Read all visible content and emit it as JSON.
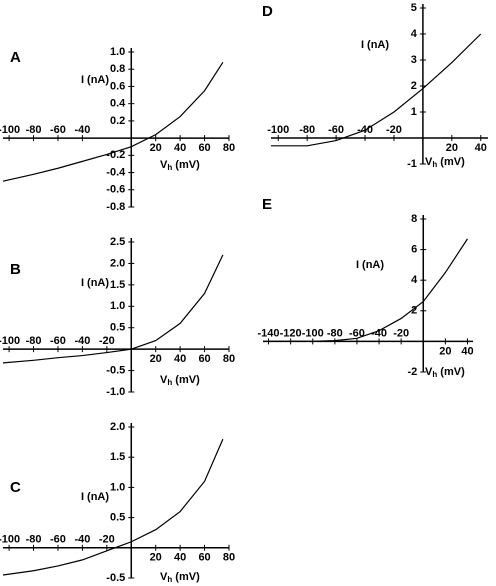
{
  "chart_data": [
    {
      "type": "line",
      "label": "A",
      "ylabel": "I (nA)",
      "xlabel": {
        "symbol": "V",
        "subscript": "h",
        "unit": " (mV)"
      },
      "x": [
        -105,
        -80,
        -60,
        -40,
        -20,
        0,
        20,
        40,
        60,
        75
      ],
      "series": [
        {
          "color": "#000000",
          "values": [
            -0.5,
            -0.42,
            -0.35,
            -0.27,
            -0.19,
            -0.1,
            0.04,
            0.25,
            0.55,
            0.88
          ]
        }
      ],
      "xlim": [
        -105,
        80
      ],
      "ylim": [
        -0.8,
        1.0
      ],
      "xticks": [
        -100,
        -80,
        -60,
        -40,
        20,
        40,
        60,
        80
      ],
      "yticks": [
        {
          "value": 1,
          "label": "1.0"
        },
        0.8,
        0.6,
        0.4,
        0.2,
        -0.2,
        -0.4,
        -0.6,
        -0.8
      ]
    },
    {
      "type": "line",
      "label": "B",
      "ylabel": "I (nA)",
      "xlabel": {
        "symbol": "V",
        "subscript": "h",
        "unit": " (mV)"
      },
      "x": [
        -105,
        -80,
        -60,
        -40,
        -20,
        0,
        20,
        40,
        60,
        75
      ],
      "series": [
        {
          "color": "#000000",
          "values": [
            -0.32,
            -0.26,
            -0.2,
            -0.15,
            -0.08,
            0.0,
            0.2,
            0.6,
            1.3,
            2.2
          ]
        }
      ],
      "xlim": [
        -105,
        80
      ],
      "ylim": [
        -1,
        2.5
      ],
      "xticks": [
        -100,
        -80,
        -60,
        -40,
        -20,
        20,
        40,
        60,
        80
      ],
      "yticks": [
        2.5,
        {
          "value": 2,
          "label": "2.0"
        },
        1.5,
        {
          "value": 1,
          "label": "1.0"
        },
        0.5,
        -0.5,
        {
          "value": -1,
          "label": "-1.0"
        }
      ]
    },
    {
      "type": "line",
      "label": "C",
      "ylabel": "I (nA)",
      "xlabel": {
        "symbol": "V",
        "subscript": "h",
        "unit": " (mV)"
      },
      "x": [
        -105,
        -80,
        -60,
        -40,
        -20,
        0,
        20,
        40,
        60,
        75
      ],
      "series": [
        {
          "color": "#000000",
          "values": [
            -0.45,
            -0.38,
            -0.3,
            -0.2,
            -0.05,
            0.1,
            0.3,
            0.6,
            1.1,
            1.8
          ]
        }
      ],
      "xlim": [
        -105,
        80
      ],
      "ylim": [
        -0.5,
        2
      ],
      "xticks": [
        -100,
        -80,
        -60,
        -40,
        -20,
        20,
        40,
        60,
        80
      ],
      "yticks": [
        {
          "value": 2,
          "label": "2.0"
        },
        1.5,
        {
          "value": 1,
          "label": "1.0"
        },
        0.5,
        -0.5
      ]
    },
    {
      "type": "line",
      "label": "D",
      "ylabel": "I (nA)",
      "xlabel": {
        "symbol": "V",
        "subscript": "h",
        "unit": " (mV)"
      },
      "x": [
        -105,
        -80,
        -60,
        -40,
        -20,
        0,
        20,
        40
      ],
      "series": [
        {
          "color": "#000000",
          "values": [
            -0.3,
            -0.3,
            -0.1,
            0.3,
            1.0,
            1.9,
            2.9,
            4.0
          ]
        }
      ],
      "xlim": [
        -105,
        45
      ],
      "ylim": [
        -1,
        5
      ],
      "xticks": [
        -100,
        -80,
        -60,
        -40,
        -20,
        20,
        40
      ],
      "yticks": [
        5,
        4,
        3,
        2,
        1,
        -1
      ]
    },
    {
      "type": "line",
      "label": "E",
      "ylabel": "I (nA)",
      "xlabel": {
        "symbol": "V",
        "subscript": "h",
        "unit": " (mV)"
      },
      "x": [
        -145,
        -100,
        -80,
        -60,
        -40,
        -20,
        0,
        20,
        40
      ],
      "series": [
        {
          "color": "#000000",
          "values": [
            0,
            0,
            0.05,
            0.2,
            0.7,
            1.5,
            2.6,
            4.5,
            6.7
          ]
        }
      ],
      "xlim": [
        -145,
        45
      ],
      "ylim": [
        -2,
        8
      ],
      "xticks": [
        -140,
        -120,
        -100,
        -80,
        -60,
        -40,
        -20,
        20,
        40
      ],
      "yticks": [
        8,
        6,
        4,
        2,
        -2
      ]
    }
  ]
}
